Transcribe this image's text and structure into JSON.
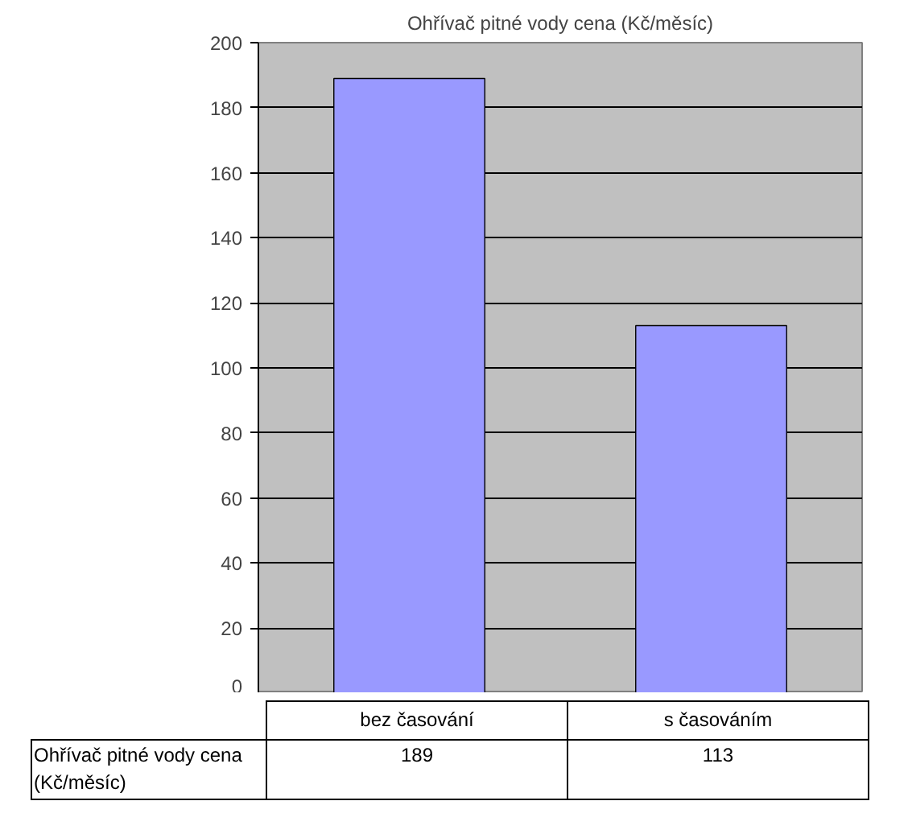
{
  "chart_data": {
    "type": "bar",
    "title": "Ohřívač pitné vody cena (Kč/měsíc)",
    "categories": [
      "bez časování",
      "s časováním"
    ],
    "series": [
      {
        "name": "Ohřívač pitné vody cena (Kč/měsíc)",
        "color": "#9999ff",
        "values": [
          189,
          113
        ]
      }
    ],
    "ylim": [
      0,
      200
    ],
    "yticks": [
      0,
      20,
      40,
      60,
      80,
      100,
      120,
      140,
      160,
      180,
      200
    ],
    "grid": "y",
    "data_labels": true
  }
}
